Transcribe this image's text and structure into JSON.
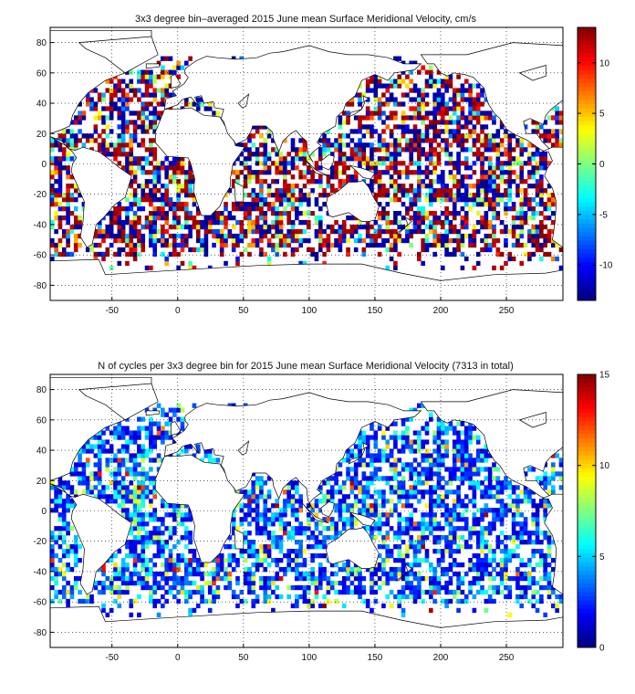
{
  "chart_data": [
    {
      "type": "heatmap",
      "title": "3x3 degree bin–averaged 2015 June mean Surface Meridional Velocity, cm/s",
      "xlabel": "",
      "ylabel": "",
      "x_ticks": [
        "-50",
        "0",
        "50",
        "100",
        "150",
        "200",
        "250"
      ],
      "y_ticks": [
        "80",
        "60",
        "40",
        "20",
        "0",
        "-20",
        "-40",
        "-60",
        "-80"
      ],
      "xlim": [
        -97,
        293
      ],
      "ylim": [
        -90,
        90
      ],
      "bin_size_deg": 3,
      "colorbar": {
        "range": [
          -13.5,
          13.5
        ],
        "ticks": [
          "10",
          "5",
          "0",
          "-5",
          "-10"
        ],
        "colormap": "jet"
      },
      "grid": true,
      "coastlines": true
    },
    {
      "type": "heatmap",
      "title": "N of cycles per 3x3 degree bin for 2015 June mean Surface Meridional Velocity (7313 in total)",
      "xlabel": "",
      "ylabel": "",
      "x_ticks": [
        "-50",
        "0",
        "50",
        "100",
        "150",
        "200",
        "250"
      ],
      "y_ticks": [
        "80",
        "60",
        "40",
        "20",
        "0",
        "-20",
        "-40",
        "-60",
        "-80"
      ],
      "xlim": [
        -97,
        293
      ],
      "ylim": [
        -90,
        90
      ],
      "bin_size_deg": 3,
      "colorbar": {
        "range": [
          0,
          15
        ],
        "ticks": [
          "15",
          "10",
          "5",
          "0"
        ],
        "colormap": "jet"
      },
      "grid": true,
      "coastlines": true
    }
  ]
}
